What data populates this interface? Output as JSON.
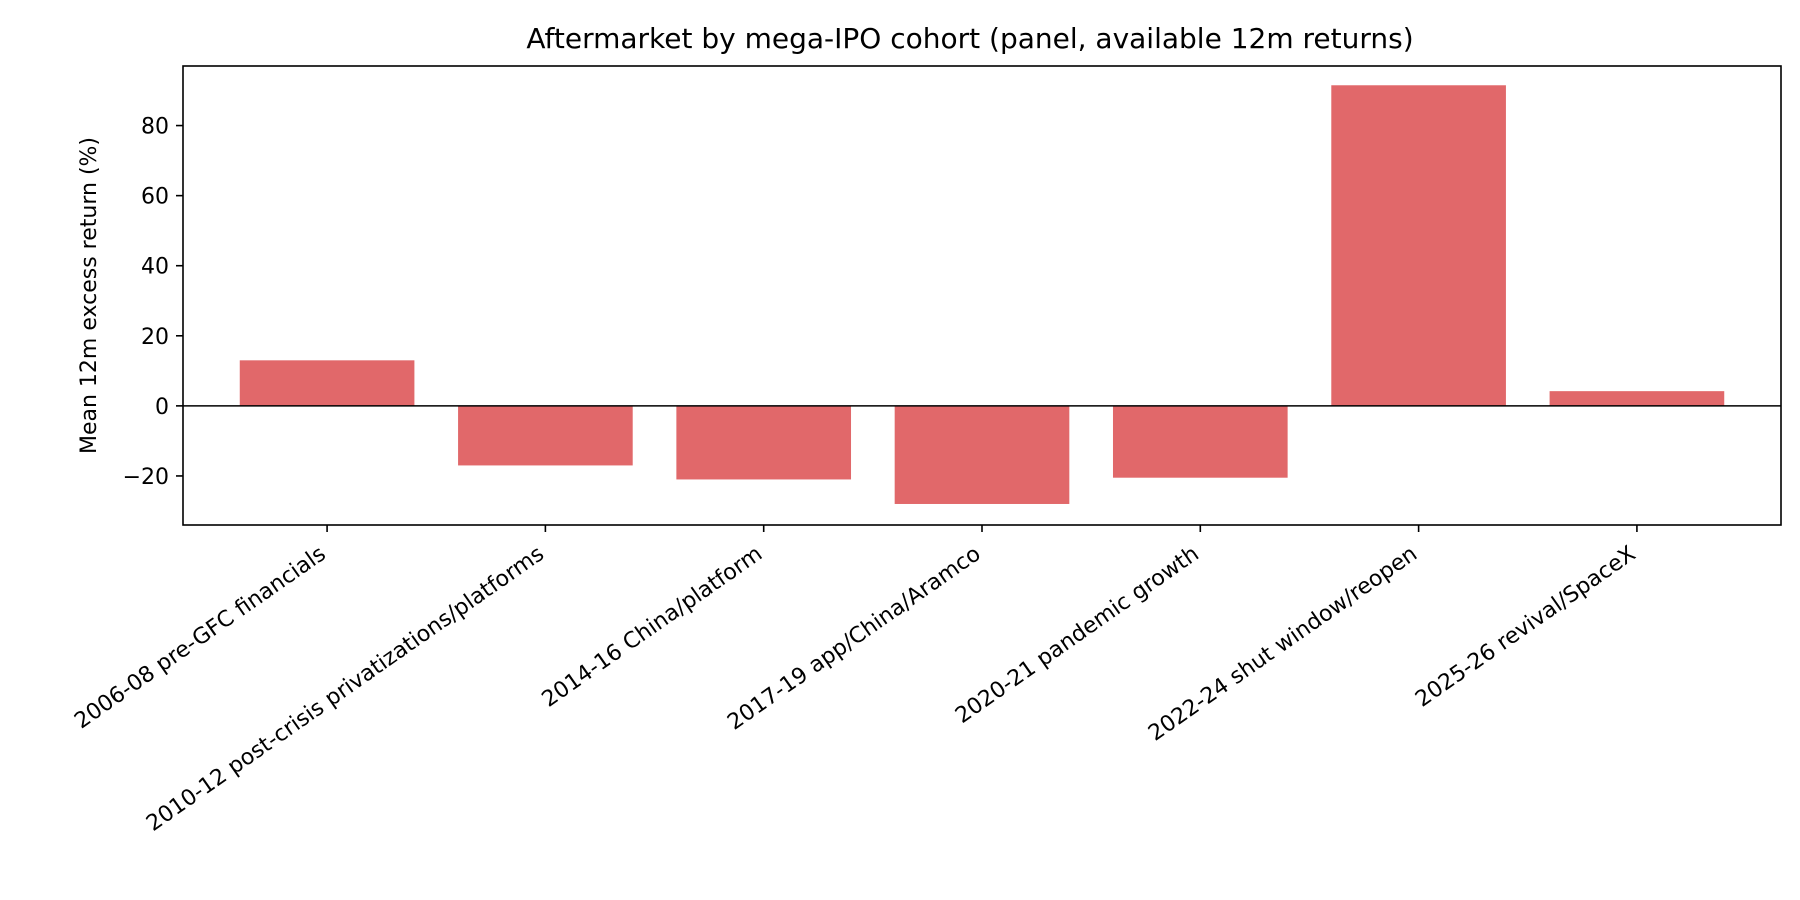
{
  "chart_data": {
    "type": "bar",
    "title": "Aftermarket by mega-IPO cohort (panel, available 12m returns)",
    "xlabel": "",
    "ylabel": "Mean 12m excess return (%)",
    "categories": [
      "2006-08 pre-GFC financials",
      "2010-12 post-crisis privatizations/platforms",
      "2014-16 China/platform",
      "2017-19 app/China/Aramco",
      "2020-21 pandemic growth",
      "2022-24 shut window/reopen",
      "2025-26 revival/SpaceX"
    ],
    "values": [
      13.0,
      -17.0,
      -21.0,
      -28.0,
      -20.5,
      91.5,
      4.2
    ],
    "ylim": [
      -34,
      97
    ],
    "yticks": [
      -20,
      0,
      20,
      40,
      60,
      80
    ],
    "ytick_labels": [
      "−20",
      "0",
      "20",
      "40",
      "60",
      "80"
    ],
    "bar_color": "#e1686a",
    "zero_line": true,
    "grid": false,
    "legend": "none"
  }
}
